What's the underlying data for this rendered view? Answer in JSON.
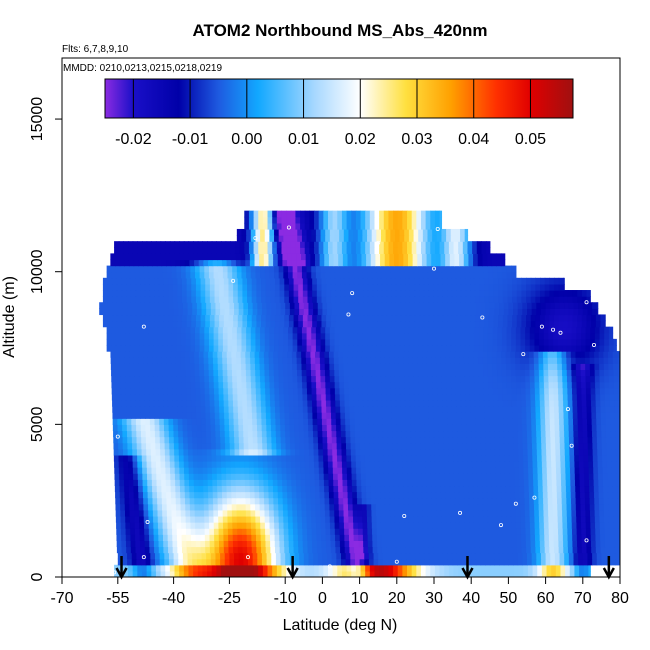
{
  "chart_data": {
    "type": "heatmap",
    "title": "ATOM2 Northbound MS_Abs_420nm",
    "subtitle_flights": "Flts: 6,7,8,9,10",
    "subtitle_dates": "MMDD: 0210,0213,0215,0218,0219",
    "xlabel": "Latitude (deg N)",
    "ylabel": "Altitude (m)",
    "xlim": [
      -70,
      80
    ],
    "ylim": [
      0,
      17000
    ],
    "x_ticks": [
      -70,
      -55,
      -40,
      -25,
      -10,
      0,
      10,
      20,
      30,
      40,
      50,
      60,
      70,
      80
    ],
    "x_tick_labels": [
      "-70",
      "-55",
      "-40",
      "-25",
      "-10",
      "0",
      "10",
      "20",
      "30",
      "40",
      "50",
      "60",
      "70",
      "80"
    ],
    "y_ticks": [
      0,
      5000,
      10000,
      15000
    ],
    "y_tick_labels": [
      "0",
      "5000",
      "10000",
      "15000"
    ],
    "colorbar": {
      "min": -0.025,
      "max": 0.0575,
      "ticks": [
        -0.02,
        -0.01,
        0.0,
        0.01,
        0.02,
        0.03,
        0.04,
        0.05
      ],
      "tick_labels": [
        "-0.02",
        "-0.01",
        "0.00",
        "0.01",
        "0.02",
        "0.03",
        "0.04",
        "0.05"
      ],
      "stops": [
        {
          "v": -0.025,
          "color": "#8b2be2"
        },
        {
          "v": -0.02,
          "color": "#1a0fc8"
        },
        {
          "v": -0.012,
          "color": "#0000a8"
        },
        {
          "v": -0.005,
          "color": "#1e5ae0"
        },
        {
          "v": 0.002,
          "color": "#12a8ff"
        },
        {
          "v": 0.012,
          "color": "#a8d8ff"
        },
        {
          "v": 0.02,
          "color": "#ffffff"
        },
        {
          "v": 0.028,
          "color": "#ffe040"
        },
        {
          "v": 0.036,
          "color": "#ffa000"
        },
        {
          "v": 0.044,
          "color": "#ff3000"
        },
        {
          "v": 0.05,
          "color": "#e00000"
        },
        {
          "v": 0.0575,
          "color": "#a01010"
        }
      ]
    },
    "flight_bands_top_altitude_m": [
      {
        "alt_top": 11900,
        "alt_bot": 11400,
        "x_min": -21,
        "x_max": 32
      },
      {
        "alt_top": 11400,
        "alt_bot": 11000,
        "x_min": -23,
        "x_max": 39
      },
      {
        "alt_top": 11000,
        "alt_bot": 10600,
        "x_min": -56,
        "x_max": 45
      },
      {
        "alt_top": 10600,
        "alt_bot": 10200,
        "x_min": -57,
        "x_max": 49
      },
      {
        "alt_top": 10200,
        "alt_bot": 9800,
        "x_min": -58,
        "x_max": 52
      },
      {
        "alt_top": 9800,
        "alt_bot": 9400,
        "x_min": -59,
        "x_max": 65
      }
    ],
    "arrows_latitude": [
      -54,
      -8,
      39,
      77
    ],
    "sample_points": [
      {
        "lat": -9,
        "alt": 11450
      },
      {
        "lat": 31,
        "alt": 11400
      },
      {
        "lat": -18,
        "alt": 11100
      },
      {
        "lat": 15,
        "alt": 10950
      },
      {
        "lat": -24,
        "alt": 9700
      },
      {
        "lat": 30,
        "alt": 10100
      },
      {
        "lat": 8,
        "alt": 9300
      },
      {
        "lat": 43,
        "alt": 8500
      },
      {
        "lat": 7,
        "alt": 8600
      },
      {
        "lat": -48,
        "alt": 8200
      },
      {
        "lat": 59,
        "alt": 8200
      },
      {
        "lat": 62,
        "alt": 8100
      },
      {
        "lat": 64,
        "alt": 8000
      },
      {
        "lat": 71,
        "alt": 9000
      },
      {
        "lat": 73,
        "alt": 7600
      },
      {
        "lat": 54,
        "alt": 7300
      },
      {
        "lat": 66,
        "alt": 5500
      },
      {
        "lat": 67,
        "alt": 4300
      },
      {
        "lat": -55,
        "alt": 4600
      },
      {
        "lat": 57,
        "alt": 2600
      },
      {
        "lat": 52,
        "alt": 2400
      },
      {
        "lat": 37,
        "alt": 2100
      },
      {
        "lat": 22,
        "alt": 2000
      },
      {
        "lat": 48,
        "alt": 1700
      },
      {
        "lat": -47,
        "alt": 1800
      },
      {
        "lat": 71,
        "alt": 1200
      },
      {
        "lat": -20,
        "alt": 650
      },
      {
        "lat": -48,
        "alt": 650
      },
      {
        "lat": 20,
        "alt": 500
      },
      {
        "lat": 2,
        "alt": 350
      },
      {
        "lat": 27,
        "alt": 150
      },
      {
        "lat": -56,
        "alt": 150
      }
    ]
  }
}
